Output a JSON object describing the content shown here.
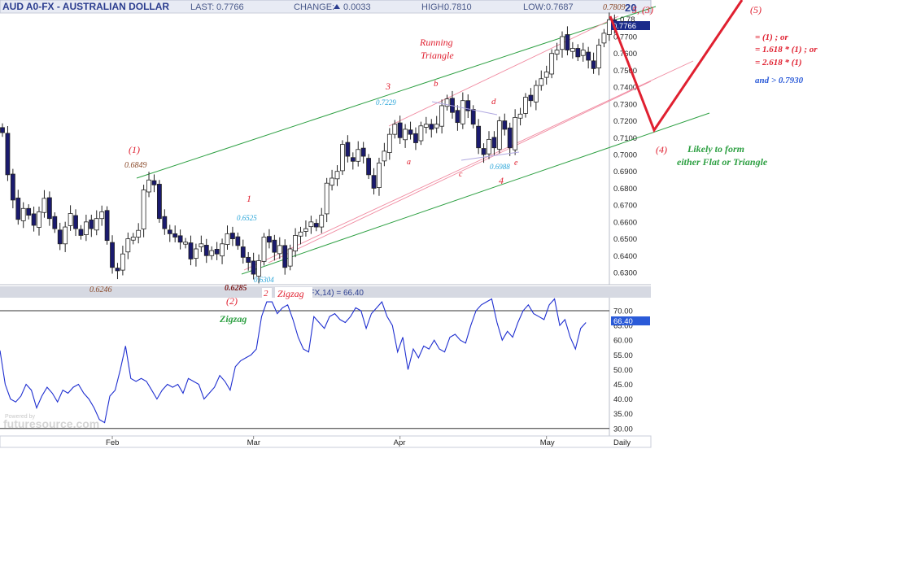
{
  "header": {
    "title": "AUD A0-FX - AUSTRALIAN DOLLAR",
    "last_label": "LAST:",
    "last_value": "0.7766",
    "change_label": "CHANGE:",
    "change_value": "0.0033",
    "high_label": "HIGH:",
    "high_value": "0.7810",
    "low_label": "LOW:",
    "low_value": "0.7687",
    "corner_text": "20"
  },
  "watermark": {
    "small": "Powered by",
    "brand": "futuresource.com"
  },
  "colors": {
    "up_candle": "#ffffff",
    "down_candle": "#1a1a6e",
    "wick": "#222222",
    "channel_green": "#2ea043",
    "channel_pink": "#f08aa0",
    "rsi_line": "#1f2fd0",
    "wave_red": "#e02030",
    "label_cyan": "#27a4d8",
    "label_brown": "#8a4a2a",
    "last_price_box": "#1a2a8a",
    "rsi_box": "#2a5ad8"
  },
  "chart_data": [
    {
      "type": "candlestick",
      "title": "AUD A0-FX - AUSTRALIAN DOLLAR",
      "xlabel": "",
      "ylabel": "",
      "ylim": [
        0.6225,
        0.784
      ],
      "y_ticks": [
        "0.7700",
        "0.7600",
        "0.7500",
        "0.7400",
        "0.7300",
        "0.7200",
        "0.7100",
        "0.7000",
        "0.6900",
        "0.6800",
        "0.6700",
        "0.6600",
        "0.6500",
        "0.6400",
        "0.6300"
      ],
      "y_tick_values": [
        0.77,
        0.76,
        0.75,
        0.74,
        0.73,
        0.72,
        0.71,
        0.7,
        0.69,
        0.68,
        0.67,
        0.66,
        0.65,
        0.64,
        0.63
      ],
      "x_ticks": [
        "Feb",
        "Mar",
        "Apr",
        "May"
      ],
      "x_tick_index": [
        21,
        48,
        76,
        104
      ],
      "x_axis_label": "Daily",
      "last_price": 0.7766,
      "last_price_label": "0.7766",
      "top_right_tick": "0.78",
      "closes": [
        0.713,
        0.688,
        0.673,
        0.6615,
        0.668,
        0.664,
        0.658,
        0.666,
        0.674,
        0.662,
        0.656,
        0.647,
        0.657,
        0.665,
        0.656,
        0.652,
        0.66,
        0.656,
        0.662,
        0.666,
        0.649,
        0.633,
        0.631,
        0.641,
        0.65,
        0.651,
        0.655,
        0.679,
        0.6849,
        0.682,
        0.662,
        0.656,
        0.653,
        0.651,
        0.648,
        0.648,
        0.638,
        0.644,
        0.647,
        0.64,
        0.643,
        0.641,
        0.647,
        0.653,
        0.65,
        0.646,
        0.639,
        0.636,
        0.629,
        0.637,
        0.651,
        0.648,
        0.642,
        0.646,
        0.633,
        0.644,
        0.652,
        0.654,
        0.656,
        0.66,
        0.657,
        0.664,
        0.683,
        0.686,
        0.69,
        0.706,
        0.699,
        0.696,
        0.703,
        0.699,
        0.688,
        0.68,
        0.695,
        0.702,
        0.712,
        0.718,
        0.71,
        0.715,
        0.712,
        0.707,
        0.717,
        0.718,
        0.715,
        0.718,
        0.729,
        0.733,
        0.725,
        0.719,
        0.732,
        0.726,
        0.718,
        0.704,
        0.7,
        0.709,
        0.704,
        0.72,
        0.715,
        0.704,
        0.722,
        0.724,
        0.734,
        0.732,
        0.741,
        0.745,
        0.749,
        0.76,
        0.762,
        0.77,
        0.762,
        0.763,
        0.758,
        0.762,
        0.756,
        0.751,
        0.765,
        0.772,
        0.78,
        0.7766
      ],
      "annotations": [
        "(1)",
        "0.6849",
        "0.6246",
        "1",
        "0.6525",
        "(2)",
        "0.6285",
        "0.6304",
        "2",
        "Zigzag",
        "3",
        "0.7229",
        "a",
        "b",
        "c",
        "d",
        "e",
        "0.6988",
        "4",
        "Running",
        "Triangle",
        "0.7809",
        "5, (3)",
        "(4)",
        "Likely to form",
        "either Flat or Triangle",
        "(5)",
        "= (1) ; or",
        "= 1.618 * (1) ; or",
        "= 2.618 * (1)",
        "and  > 0.7930"
      ]
    },
    {
      "type": "line",
      "title": "A0-FX,14) = 66.40",
      "series": [
        {
          "name": "RSI",
          "values": [
            56.5,
            45,
            40,
            39,
            41,
            45,
            43,
            37,
            41,
            44,
            42,
            39,
            43,
            42,
            44,
            45,
            42,
            40,
            37,
            33,
            32,
            41,
            43,
            50,
            58,
            47,
            46,
            47,
            46,
            43,
            40,
            43,
            45,
            44,
            45,
            42,
            47,
            46,
            45,
            40,
            42,
            44,
            48,
            46,
            43,
            51,
            53,
            54,
            55,
            57,
            68,
            73,
            73,
            69,
            71,
            72,
            67,
            61,
            57,
            56,
            68,
            66,
            64,
            68,
            69,
            67,
            66,
            68,
            71,
            70,
            64,
            69,
            71,
            73,
            68,
            65,
            56,
            61,
            50,
            57,
            54,
            58,
            57,
            60,
            57,
            56,
            61,
            62,
            60,
            59,
            65,
            70,
            72,
            73,
            74,
            66,
            60,
            63,
            61,
            66,
            70,
            72,
            69,
            68,
            67,
            72,
            74,
            65,
            67,
            61,
            57,
            64,
            66
          ]
        }
      ],
      "ylim": [
        28.5,
        72.5
      ],
      "y_ticks": [
        "70.00",
        "65.00",
        "60.00",
        "55.00",
        "50.00",
        "45.00",
        "40.00",
        "35.00",
        "30.00"
      ],
      "y_tick_values": [
        70,
        65,
        60,
        55,
        50,
        45,
        40,
        35,
        30
      ],
      "reference_lines": [
        70,
        30
      ],
      "last_value_label": "66.40"
    }
  ]
}
